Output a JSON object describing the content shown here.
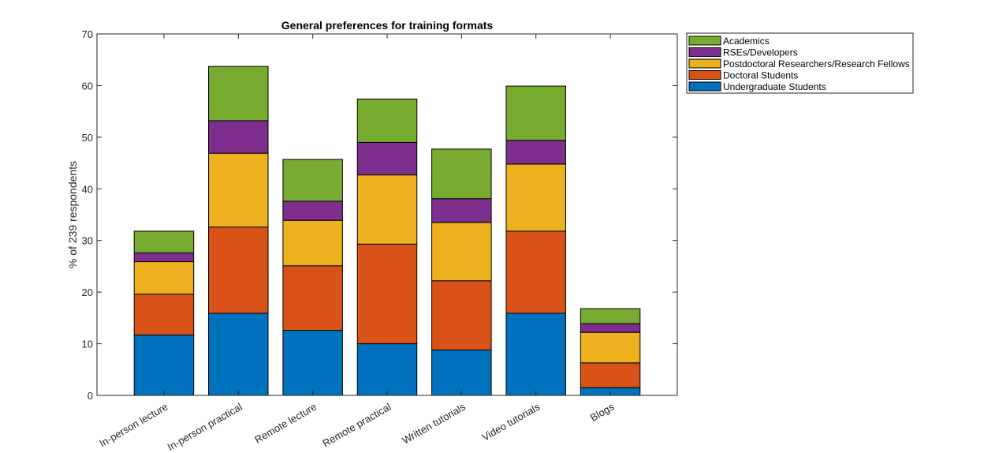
{
  "chart_data": {
    "type": "bar",
    "stacked": true,
    "title": "General preferences for training formats",
    "xlabel": "",
    "ylabel": "% of 239 respondents",
    "ylim": [
      0,
      70
    ],
    "yticks": [
      "0",
      "10",
      "20",
      "30",
      "40",
      "50",
      "60",
      "70"
    ],
    "categories": [
      "In-person lecture",
      "In-person practical",
      "Remote lecture",
      "Remote practical",
      "Written tutorials",
      "Video tutorials",
      "Blogs"
    ],
    "series": [
      {
        "name": "Undergraduate Students",
        "color": "#0072BD",
        "values": [
          11.7,
          15.9,
          12.6,
          10.0,
          8.8,
          15.9,
          1.5
        ]
      },
      {
        "name": "Doctoral Students",
        "color": "#D95319",
        "values": [
          7.9,
          16.7,
          12.5,
          19.3,
          13.4,
          15.9,
          4.8
        ]
      },
      {
        "name": "Postdoctoral Researchers/Research Fellows",
        "color": "#EDB120",
        "values": [
          6.3,
          14.3,
          8.8,
          13.4,
          11.3,
          13.0,
          5.9
        ]
      },
      {
        "name": "RSEs/Developers",
        "color": "#7E2F8E",
        "values": [
          1.7,
          6.3,
          3.7,
          6.3,
          4.6,
          4.6,
          1.7
        ]
      },
      {
        "name": "Academics",
        "color": "#77AC30",
        "values": [
          4.2,
          10.5,
          8.1,
          8.4,
          9.6,
          10.5,
          2.9
        ]
      }
    ],
    "legend_order": [
      "Academics",
      "RSEs/Developers",
      "Postdoctoral Researchers/Research Fellows",
      "Doctoral Students",
      "Undergraduate Students"
    ],
    "legend_position": "outside-top-right",
    "grid": false
  }
}
